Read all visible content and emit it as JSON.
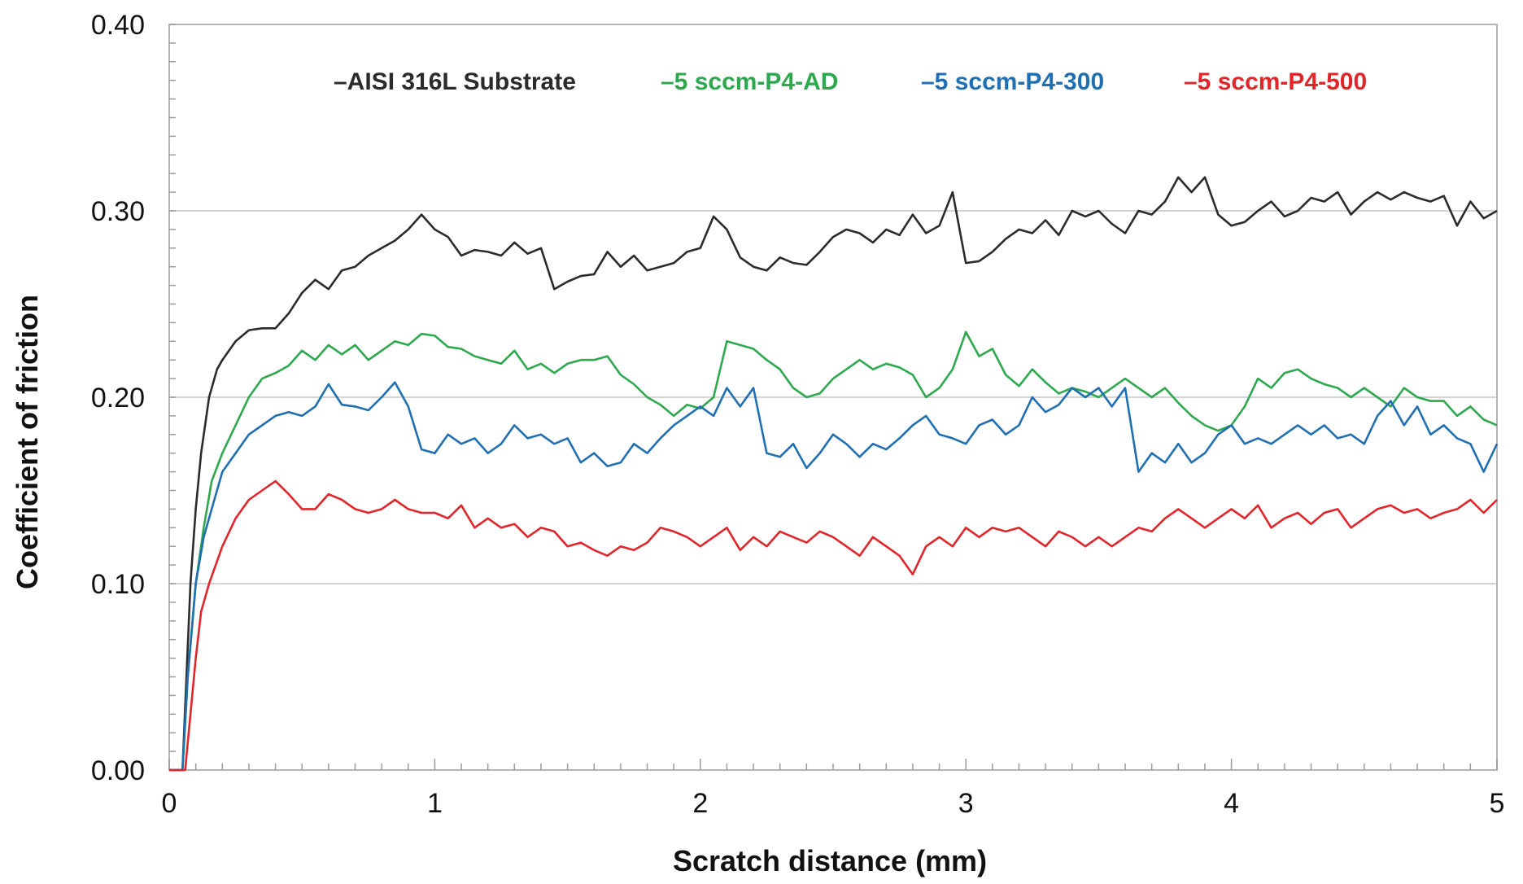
{
  "chart_data": {
    "type": "line",
    "xlabel": "Scratch distance (mm)",
    "ylabel": "Coefficient of friction",
    "xlim": [
      0,
      5
    ],
    "ylim": [
      0,
      0.4
    ],
    "x_ticks": [
      "0",
      "1",
      "2",
      "3",
      "4",
      "5"
    ],
    "y_ticks": [
      "0.00",
      "0.10",
      "0.20",
      "0.30",
      "0.40"
    ],
    "grid": "horizontal",
    "legend_position": "top",
    "series": [
      {
        "name": "AISI 316L Substrate",
        "legend_label": "–AISI 316L Substrate",
        "color": "#2b2b2b",
        "x": [
          0,
          0.05,
          0.08,
          0.1,
          0.12,
          0.15,
          0.18,
          0.2,
          0.25,
          0.3,
          0.35,
          0.4,
          0.45,
          0.5,
          0.55,
          0.6,
          0.65,
          0.7,
          0.75,
          0.8,
          0.85,
          0.9,
          0.95,
          1.0,
          1.05,
          1.1,
          1.15,
          1.2,
          1.25,
          1.3,
          1.35,
          1.4,
          1.45,
          1.5,
          1.55,
          1.6,
          1.65,
          1.7,
          1.75,
          1.8,
          1.85,
          1.9,
          1.95,
          2.0,
          2.05,
          2.1,
          2.15,
          2.2,
          2.25,
          2.3,
          2.35,
          2.4,
          2.45,
          2.5,
          2.55,
          2.6,
          2.65,
          2.7,
          2.75,
          2.8,
          2.85,
          2.9,
          2.95,
          3.0,
          3.05,
          3.1,
          3.15,
          3.2,
          3.25,
          3.3,
          3.35,
          3.4,
          3.45,
          3.5,
          3.55,
          3.6,
          3.65,
          3.7,
          3.75,
          3.8,
          3.85,
          3.9,
          3.95,
          4.0,
          4.05,
          4.1,
          4.15,
          4.2,
          4.25,
          4.3,
          4.35,
          4.4,
          4.45,
          4.5,
          4.55,
          4.6,
          4.65,
          4.7,
          4.75,
          4.8,
          4.85,
          4.9,
          4.95,
          5.0
        ],
        "y": [
          0.0,
          0.0,
          0.1,
          0.14,
          0.17,
          0.2,
          0.215,
          0.22,
          0.23,
          0.236,
          0.237,
          0.237,
          0.245,
          0.256,
          0.263,
          0.258,
          0.268,
          0.27,
          0.276,
          0.28,
          0.284,
          0.29,
          0.298,
          0.29,
          0.286,
          0.276,
          0.279,
          0.278,
          0.276,
          0.283,
          0.277,
          0.28,
          0.258,
          0.262,
          0.265,
          0.266,
          0.278,
          0.27,
          0.276,
          0.268,
          0.27,
          0.272,
          0.278,
          0.28,
          0.297,
          0.29,
          0.275,
          0.27,
          0.268,
          0.275,
          0.272,
          0.271,
          0.278,
          0.286,
          0.29,
          0.288,
          0.283,
          0.29,
          0.287,
          0.298,
          0.288,
          0.292,
          0.31,
          0.272,
          0.273,
          0.278,
          0.285,
          0.29,
          0.288,
          0.295,
          0.287,
          0.3,
          0.297,
          0.3,
          0.293,
          0.288,
          0.3,
          0.298,
          0.305,
          0.318,
          0.31,
          0.318,
          0.298,
          0.292,
          0.294,
          0.3,
          0.305,
          0.297,
          0.3,
          0.307,
          0.305,
          0.31,
          0.298,
          0.305,
          0.31,
          0.306,
          0.31,
          0.307,
          0.305,
          0.308,
          0.292,
          0.305,
          0.296,
          0.3
        ]
      },
      {
        "name": "5 sccm-P4-AD",
        "legend_label": "–5 sccm-P4-AD",
        "color": "#2ea84e",
        "x": [
          0,
          0.05,
          0.07,
          0.1,
          0.13,
          0.16,
          0.2,
          0.25,
          0.3,
          0.35,
          0.4,
          0.45,
          0.5,
          0.55,
          0.6,
          0.65,
          0.7,
          0.75,
          0.8,
          0.85,
          0.9,
          0.95,
          1.0,
          1.05,
          1.1,
          1.15,
          1.2,
          1.25,
          1.3,
          1.35,
          1.4,
          1.45,
          1.5,
          1.55,
          1.6,
          1.65,
          1.7,
          1.75,
          1.8,
          1.85,
          1.9,
          1.95,
          2.0,
          2.05,
          2.1,
          2.15,
          2.2,
          2.25,
          2.3,
          2.35,
          2.4,
          2.45,
          2.5,
          2.55,
          2.6,
          2.65,
          2.7,
          2.75,
          2.8,
          2.85,
          2.9,
          2.95,
          3.0,
          3.05,
          3.1,
          3.15,
          3.2,
          3.25,
          3.3,
          3.35,
          3.4,
          3.45,
          3.5,
          3.55,
          3.6,
          3.65,
          3.7,
          3.75,
          3.8,
          3.85,
          3.9,
          3.95,
          4.0,
          4.05,
          4.1,
          4.15,
          4.2,
          4.25,
          4.3,
          4.35,
          4.4,
          4.45,
          4.5,
          4.55,
          4.6,
          4.65,
          4.7,
          4.75,
          4.8,
          4.85,
          4.9,
          4.95,
          5.0
        ],
        "y": [
          0.0,
          0.0,
          0.05,
          0.1,
          0.13,
          0.155,
          0.17,
          0.185,
          0.2,
          0.21,
          0.213,
          0.217,
          0.225,
          0.22,
          0.228,
          0.223,
          0.228,
          0.22,
          0.225,
          0.23,
          0.228,
          0.234,
          0.233,
          0.227,
          0.226,
          0.222,
          0.22,
          0.218,
          0.225,
          0.215,
          0.218,
          0.213,
          0.218,
          0.22,
          0.22,
          0.222,
          0.212,
          0.207,
          0.2,
          0.196,
          0.19,
          0.196,
          0.194,
          0.2,
          0.23,
          0.228,
          0.226,
          0.22,
          0.215,
          0.205,
          0.2,
          0.202,
          0.21,
          0.215,
          0.22,
          0.215,
          0.218,
          0.216,
          0.212,
          0.2,
          0.205,
          0.215,
          0.235,
          0.222,
          0.226,
          0.212,
          0.206,
          0.215,
          0.208,
          0.202,
          0.205,
          0.203,
          0.2,
          0.205,
          0.21,
          0.205,
          0.2,
          0.205,
          0.197,
          0.19,
          0.185,
          0.182,
          0.185,
          0.195,
          0.21,
          0.205,
          0.213,
          0.215,
          0.21,
          0.207,
          0.205,
          0.2,
          0.205,
          0.2,
          0.195,
          0.205,
          0.2,
          0.198,
          0.198,
          0.19,
          0.195,
          0.188,
          0.185
        ]
      },
      {
        "name": "5 sccm-P4-300",
        "legend_label": "–5 sccm-P4-300",
        "color": "#1f6fb2",
        "x": [
          0,
          0.05,
          0.07,
          0.1,
          0.13,
          0.16,
          0.2,
          0.25,
          0.3,
          0.35,
          0.4,
          0.45,
          0.5,
          0.55,
          0.6,
          0.65,
          0.7,
          0.75,
          0.8,
          0.85,
          0.9,
          0.95,
          1.0,
          1.05,
          1.1,
          1.15,
          1.2,
          1.25,
          1.3,
          1.35,
          1.4,
          1.45,
          1.5,
          1.55,
          1.6,
          1.65,
          1.7,
          1.75,
          1.8,
          1.85,
          1.9,
          1.95,
          2.0,
          2.05,
          2.1,
          2.15,
          2.2,
          2.25,
          2.3,
          2.35,
          2.4,
          2.45,
          2.5,
          2.55,
          2.6,
          2.65,
          2.7,
          2.75,
          2.8,
          2.85,
          2.9,
          2.95,
          3.0,
          3.05,
          3.1,
          3.15,
          3.2,
          3.25,
          3.3,
          3.35,
          3.4,
          3.45,
          3.5,
          3.55,
          3.6,
          3.65,
          3.7,
          3.75,
          3.8,
          3.85,
          3.9,
          3.95,
          4.0,
          4.05,
          4.1,
          4.15,
          4.2,
          4.25,
          4.3,
          4.35,
          4.4,
          4.45,
          4.5,
          4.55,
          4.6,
          4.65,
          4.7,
          4.75,
          4.8,
          4.85,
          4.9,
          4.95,
          5.0
        ],
        "y": [
          0.0,
          0.0,
          0.05,
          0.1,
          0.125,
          0.14,
          0.16,
          0.17,
          0.18,
          0.185,
          0.19,
          0.192,
          0.19,
          0.195,
          0.207,
          0.196,
          0.195,
          0.193,
          0.2,
          0.208,
          0.195,
          0.172,
          0.17,
          0.18,
          0.175,
          0.178,
          0.17,
          0.175,
          0.185,
          0.178,
          0.18,
          0.175,
          0.178,
          0.165,
          0.17,
          0.163,
          0.165,
          0.175,
          0.17,
          0.178,
          0.185,
          0.19,
          0.195,
          0.19,
          0.205,
          0.195,
          0.205,
          0.17,
          0.168,
          0.175,
          0.162,
          0.17,
          0.18,
          0.175,
          0.168,
          0.175,
          0.172,
          0.178,
          0.185,
          0.19,
          0.18,
          0.178,
          0.175,
          0.185,
          0.188,
          0.18,
          0.185,
          0.2,
          0.192,
          0.196,
          0.205,
          0.2,
          0.205,
          0.195,
          0.205,
          0.16,
          0.17,
          0.165,
          0.175,
          0.165,
          0.17,
          0.18,
          0.185,
          0.175,
          0.178,
          0.175,
          0.18,
          0.185,
          0.18,
          0.185,
          0.178,
          0.18,
          0.175,
          0.19,
          0.198,
          0.185,
          0.195,
          0.18,
          0.185,
          0.178,
          0.175,
          0.16,
          0.175
        ]
      },
      {
        "name": "5 sccm-P4-500",
        "legend_label": "–5 sccm-P4-500",
        "color": "#e0262a",
        "x": [
          0,
          0.06,
          0.08,
          0.1,
          0.12,
          0.15,
          0.2,
          0.25,
          0.3,
          0.35,
          0.4,
          0.45,
          0.5,
          0.55,
          0.6,
          0.65,
          0.7,
          0.75,
          0.8,
          0.85,
          0.9,
          0.95,
          1.0,
          1.05,
          1.1,
          1.15,
          1.2,
          1.25,
          1.3,
          1.35,
          1.4,
          1.45,
          1.5,
          1.55,
          1.6,
          1.65,
          1.7,
          1.75,
          1.8,
          1.85,
          1.9,
          1.95,
          2.0,
          2.05,
          2.1,
          2.15,
          2.2,
          2.25,
          2.3,
          2.35,
          2.4,
          2.45,
          2.5,
          2.55,
          2.6,
          2.65,
          2.7,
          2.75,
          2.8,
          2.85,
          2.9,
          2.95,
          3.0,
          3.05,
          3.1,
          3.15,
          3.2,
          3.25,
          3.3,
          3.35,
          3.4,
          3.45,
          3.5,
          3.55,
          3.6,
          3.65,
          3.7,
          3.75,
          3.8,
          3.85,
          3.9,
          3.95,
          4.0,
          4.05,
          4.1,
          4.15,
          4.2,
          4.25,
          4.3,
          4.35,
          4.4,
          4.45,
          4.5,
          4.55,
          4.6,
          4.65,
          4.7,
          4.75,
          4.8,
          4.85,
          4.9,
          4.95,
          5.0
        ],
        "y": [
          0.0,
          0.0,
          0.03,
          0.06,
          0.085,
          0.1,
          0.12,
          0.135,
          0.145,
          0.15,
          0.155,
          0.148,
          0.14,
          0.14,
          0.148,
          0.145,
          0.14,
          0.138,
          0.14,
          0.145,
          0.14,
          0.138,
          0.138,
          0.135,
          0.142,
          0.13,
          0.135,
          0.13,
          0.132,
          0.125,
          0.13,
          0.128,
          0.12,
          0.122,
          0.118,
          0.115,
          0.12,
          0.118,
          0.122,
          0.13,
          0.128,
          0.125,
          0.12,
          0.125,
          0.13,
          0.118,
          0.125,
          0.12,
          0.128,
          0.125,
          0.122,
          0.128,
          0.125,
          0.12,
          0.115,
          0.125,
          0.12,
          0.115,
          0.105,
          0.12,
          0.125,
          0.12,
          0.13,
          0.125,
          0.13,
          0.128,
          0.13,
          0.125,
          0.12,
          0.128,
          0.125,
          0.12,
          0.125,
          0.12,
          0.125,
          0.13,
          0.128,
          0.135,
          0.14,
          0.135,
          0.13,
          0.135,
          0.14,
          0.135,
          0.142,
          0.13,
          0.135,
          0.138,
          0.132,
          0.138,
          0.14,
          0.13,
          0.135,
          0.14,
          0.142,
          0.138,
          0.14,
          0.135,
          0.138,
          0.14,
          0.145,
          0.138,
          0.145
        ]
      }
    ]
  }
}
